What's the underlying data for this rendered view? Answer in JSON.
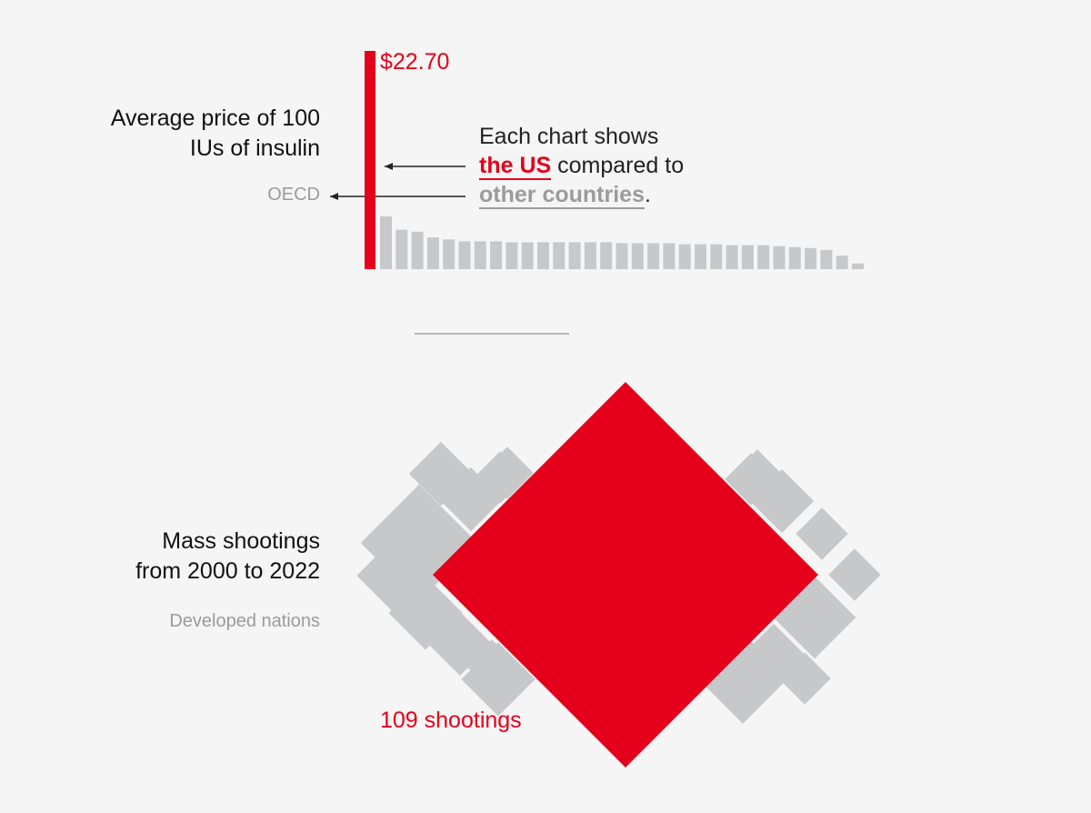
{
  "charts": {
    "insulin": {
      "title_line1": "Average price of 100",
      "title_line2": "IUs of insulin",
      "comparison_label": "OECD",
      "us_value_label": "$22.70"
    },
    "shootings": {
      "title_line1": "Mass shootings",
      "title_line2": "from 2000 to 2022",
      "comparison_label": "Developed nations",
      "us_value_label": "109 shootings"
    }
  },
  "explainer": {
    "line1": "Each chart shows",
    "us_label": "the US",
    "line2_rest": " compared to",
    "other_label": "other countries",
    "period": "."
  },
  "colors": {
    "us": "#e4001b",
    "other": "#c7c8ca",
    "title_text": "#111111",
    "muted_text": "#9b9b9b",
    "background": "#f5f5f5"
  },
  "chart_data": [
    {
      "type": "bar",
      "series": [
        {
          "name": "the US",
          "values": [
            22.7
          ]
        },
        {
          "name": "other countries",
          "values": [
            5.5,
            4.1,
            3.9,
            3.3,
            3.1,
            2.9,
            2.9,
            2.9,
            2.8,
            2.8,
            2.8,
            2.8,
            2.8,
            2.8,
            2.8,
            2.7,
            2.7,
            2.7,
            2.7,
            2.6,
            2.6,
            2.6,
            2.5,
            2.5,
            2.5,
            2.4,
            2.3,
            2.2,
            2.0,
            1.4,
            0.6
          ]
        }
      ],
      "ylim": [
        0,
        22.7
      ]
    },
    {
      "type": "other",
      "series": [
        {
          "name": "the US",
          "values": [
            109
          ]
        },
        {
          "name": "other countries",
          "values": [
            10,
            3,
            2,
            3,
            4,
            4,
            3,
            2,
            2,
            3,
            2,
            2,
            5,
            3,
            6,
            2,
            4,
            2,
            2,
            2
          ]
        }
      ]
    }
  ]
}
